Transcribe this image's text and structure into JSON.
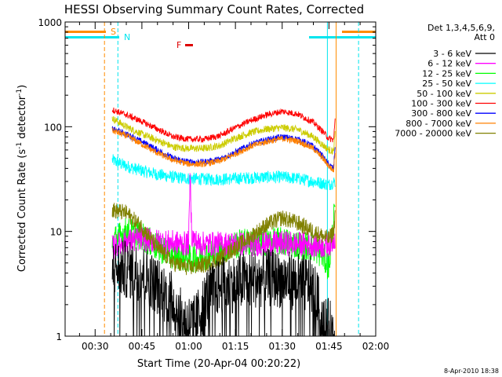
{
  "chart_data": {
    "type": "line",
    "title": "HESSI Observing Summary Count Rates, Corrected",
    "xlabel": "Start Time (20-Apr-04 00:20:22)",
    "ylabel_main": "Corrected Count Rate (s",
    "ylabel_sup1": "-1",
    "ylabel_mid": " detector",
    "ylabel_sup2": "-1",
    "ylabel_end": ")",
    "y_scale": "log",
    "ylim": [
      1,
      1000
    ],
    "xlim_minutes": [
      20.37,
      120
    ],
    "x_ticks": [
      {
        "m": 30,
        "label": "00:30"
      },
      {
        "m": 45,
        "label": "00:45"
      },
      {
        "m": 60,
        "label": "01:00"
      },
      {
        "m": 75,
        "label": "01:15"
      },
      {
        "m": 90,
        "label": "01:30"
      },
      {
        "m": 105,
        "label": "01:45"
      },
      {
        "m": 120,
        "label": "02:00"
      }
    ],
    "y_ticks": [
      {
        "v": 1,
        "label": "1"
      },
      {
        "v": 10,
        "label": "10"
      },
      {
        "v": 100,
        "label": "100"
      },
      {
        "v": 1000,
        "label": "1000"
      }
    ],
    "legend_title": "Det 1,3,4,5,6,9,",
    "legend_subtitle": "Att 0",
    "flags": [
      {
        "label": "S",
        "color": "#ff8c00"
      },
      {
        "label": "N",
        "color": "#00e5ee"
      },
      {
        "label": "F",
        "color": "#dd0000"
      }
    ],
    "timestamp": "8-Apr-2010 18:38",
    "series": [
      {
        "name": "3 - 6 keV",
        "color": "#000000",
        "keypoints": [
          [
            35.5,
            4.5
          ],
          [
            40,
            4.3
          ],
          [
            45,
            4.1
          ],
          [
            50,
            3.0
          ],
          [
            55,
            2.2
          ],
          [
            58,
            1.4
          ],
          [
            62,
            1.3
          ],
          [
            66,
            2.5
          ],
          [
            70,
            3.0
          ],
          [
            75,
            3.2
          ],
          [
            80,
            3.5
          ],
          [
            85,
            3.6
          ],
          [
            90,
            3.5
          ],
          [
            95,
            3.3
          ],
          [
            100,
            3.0
          ],
          [
            103,
            1.4
          ],
          [
            105,
            1.2
          ],
          [
            107,
            1.1
          ]
        ]
      },
      {
        "name": "6 - 12 keV",
        "color": "#ff00ff",
        "keypoints": [
          [
            35.5,
            7
          ],
          [
            40,
            8
          ],
          [
            45,
            8.5
          ],
          [
            50,
            8
          ],
          [
            55,
            7.8
          ],
          [
            59,
            7.6
          ],
          [
            60,
            7.8
          ],
          [
            60.5,
            35
          ],
          [
            61,
            9
          ],
          [
            63,
            7.6
          ],
          [
            70,
            7.6
          ],
          [
            80,
            7.6
          ],
          [
            90,
            7.7
          ],
          [
            100,
            7.5
          ],
          [
            104,
            7.2
          ],
          [
            106,
            8
          ],
          [
            107,
            9
          ]
        ]
      },
      {
        "name": "12 - 25 keV",
        "color": "#00ff00",
        "keypoints": [
          [
            35.5,
            8
          ],
          [
            40,
            10
          ],
          [
            45,
            9
          ],
          [
            50,
            7
          ],
          [
            55,
            6
          ],
          [
            60,
            5.5
          ],
          [
            65,
            5.8
          ],
          [
            70,
            6.5
          ],
          [
            75,
            7.5
          ],
          [
            80,
            8
          ],
          [
            85,
            8
          ],
          [
            90,
            8
          ],
          [
            95,
            7.5
          ],
          [
            100,
            7
          ],
          [
            103,
            6
          ],
          [
            105,
            4.5
          ],
          [
            107,
            18
          ]
        ]
      },
      {
        "name": "25 - 50 keV",
        "color": "#00ffff",
        "keypoints": [
          [
            35.5,
            48
          ],
          [
            40,
            42
          ],
          [
            45,
            38
          ],
          [
            50,
            35
          ],
          [
            55,
            33
          ],
          [
            60,
            32
          ],
          [
            65,
            31.5
          ],
          [
            70,
            31.5
          ],
          [
            75,
            32
          ],
          [
            80,
            32.5
          ],
          [
            85,
            33
          ],
          [
            90,
            33
          ],
          [
            95,
            32
          ],
          [
            100,
            30
          ],
          [
            105,
            28
          ],
          [
            107,
            30
          ]
        ]
      },
      {
        "name": "50 - 100 keV",
        "color": "#cccc00",
        "keypoints": [
          [
            35.5,
            120
          ],
          [
            40,
            100
          ],
          [
            45,
            85
          ],
          [
            50,
            74
          ],
          [
            55,
            64
          ],
          [
            60,
            62
          ],
          [
            65,
            62
          ],
          [
            70,
            66
          ],
          [
            75,
            78
          ],
          [
            80,
            88
          ],
          [
            85,
            95
          ],
          [
            90,
            98
          ],
          [
            95,
            94
          ],
          [
            100,
            80
          ],
          [
            103,
            67
          ],
          [
            105,
            60
          ],
          [
            106.5,
            58
          ],
          [
            107,
            90
          ]
        ]
      },
      {
        "name": "100 - 300 keV",
        "color": "#ff0000",
        "keypoints": [
          [
            35.5,
            145
          ],
          [
            40,
            130
          ],
          [
            45,
            112
          ],
          [
            50,
            95
          ],
          [
            55,
            80
          ],
          [
            60,
            76
          ],
          [
            65,
            76
          ],
          [
            70,
            82
          ],
          [
            75,
            98
          ],
          [
            80,
            115
          ],
          [
            85,
            130
          ],
          [
            90,
            140
          ],
          [
            95,
            132
          ],
          [
            100,
            110
          ],
          [
            103,
            90
          ],
          [
            105,
            77
          ],
          [
            106.5,
            75
          ],
          [
            107,
            120
          ]
        ]
      },
      {
        "name": "300 - 800 keV",
        "color": "#0000ff",
        "keypoints": [
          [
            35.5,
            95
          ],
          [
            40,
            85
          ],
          [
            45,
            72
          ],
          [
            50,
            60
          ],
          [
            55,
            50
          ],
          [
            60,
            46
          ],
          [
            65,
            46
          ],
          [
            70,
            49
          ],
          [
            75,
            57
          ],
          [
            80,
            68
          ],
          [
            85,
            75
          ],
          [
            90,
            80
          ],
          [
            95,
            76
          ],
          [
            100,
            65
          ],
          [
            103,
            52
          ],
          [
            105,
            43
          ],
          [
            106.5,
            40
          ],
          [
            107,
            70
          ]
        ]
      },
      {
        "name": "800 - 7000 keV",
        "color": "#ff8000",
        "keypoints": [
          [
            35.5,
            92
          ],
          [
            40,
            82
          ],
          [
            45,
            68
          ],
          [
            50,
            56
          ],
          [
            55,
            48
          ],
          [
            60,
            44
          ],
          [
            65,
            44
          ],
          [
            70,
            47
          ],
          [
            75,
            55
          ],
          [
            80,
            65
          ],
          [
            85,
            72
          ],
          [
            90,
            77
          ],
          [
            95,
            73
          ],
          [
            100,
            62
          ],
          [
            103,
            50
          ],
          [
            105,
            42
          ],
          [
            106.5,
            38
          ],
          [
            107,
            60
          ]
        ]
      },
      {
        "name": "7000 - 20000 keV",
        "color": "#808000",
        "keypoints": [
          [
            35.5,
            16
          ],
          [
            40,
            15
          ],
          [
            45,
            11
          ],
          [
            50,
            7
          ],
          [
            55,
            5
          ],
          [
            60,
            4.5
          ],
          [
            65,
            4.8
          ],
          [
            70,
            5.5
          ],
          [
            75,
            7
          ],
          [
            80,
            9
          ],
          [
            85,
            11.5
          ],
          [
            90,
            13.5
          ],
          [
            95,
            12
          ],
          [
            100,
            10
          ],
          [
            103,
            9
          ],
          [
            105,
            8.5
          ],
          [
            106.5,
            10
          ],
          [
            107,
            15
          ]
        ]
      }
    ],
    "attenuator_lines": [
      {
        "m": 33.0,
        "color": "#ff8c00"
      },
      {
        "m": 37.3,
        "color": "#00e5ee"
      },
      {
        "m": 104.5,
        "color": "#00e5ee"
      },
      {
        "m": 107.3,
        "color": "#ff8c00"
      },
      {
        "m": 114.5,
        "color": "#00e5ee"
      }
    ]
  }
}
